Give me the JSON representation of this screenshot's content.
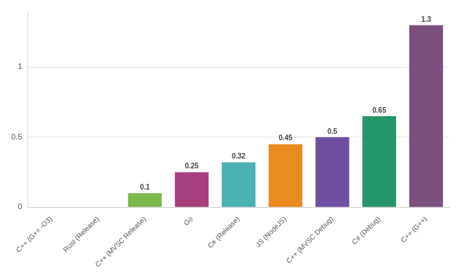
{
  "chart_data": {
    "type": "bar",
    "categories": [
      "C++ (G++ -O3)",
      "Rust (Release)",
      "C++ (MVSC Release)",
      "Go",
      "C# (Release)",
      "JS (NodeJS)",
      "C++ (MVSC Debug)",
      "C# (Debug)",
      "C++ (G++)"
    ],
    "values": [
      0,
      0,
      0.1,
      0.25,
      0.32,
      0.45,
      0.5,
      0.65,
      1.3
    ],
    "value_labels": [
      null,
      null,
      "0.1",
      "0.25",
      "0.32",
      "0.45",
      "0.5",
      "0.65",
      "1.3"
    ],
    "colors": [
      "#4e79a7",
      "#e15759",
      "#7cb84a",
      "#a6407f",
      "#4cb1b3",
      "#e98b1f",
      "#6e50a1",
      "#249669",
      "#7c507d"
    ],
    "ylim": [
      0,
      1.4
    ],
    "yticks": [
      0,
      0.5,
      1
    ],
    "grid": true,
    "data_labels": true
  }
}
